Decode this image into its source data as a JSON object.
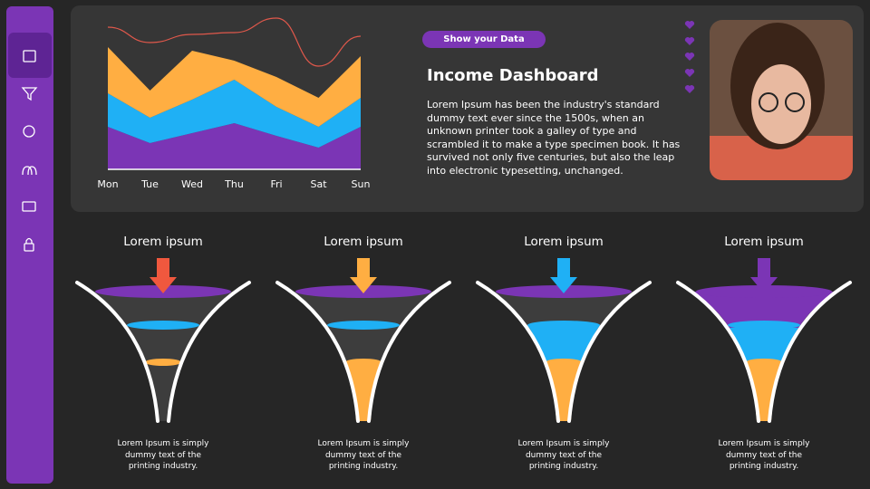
{
  "chart_data": {
    "type": "area",
    "stacked": true,
    "categories": [
      "Mon",
      "Tue",
      "Wed",
      "Thu",
      "Fri",
      "Sat",
      "Sun"
    ],
    "ylim": [
      0,
      170
    ],
    "series": [
      {
        "color": "#7b35b5",
        "values": [
          47,
          29,
          40,
          51,
          37,
          24,
          47
        ]
      },
      {
        "color": "#1fb0f5",
        "values": [
          37,
          28,
          37,
          48,
          32,
          23,
          32
        ]
      },
      {
        "color": "#ffae42",
        "values": [
          51,
          30,
          54,
          21,
          33,
          32,
          46
        ]
      },
      {
        "type": "line",
        "color": "#e0584b",
        "values": [
          157,
          140,
          149,
          151,
          167,
          114,
          147
        ]
      }
    ]
  },
  "header": {
    "button": "Show your Data",
    "title": "Income Dashboard",
    "text": "Lorem Ipsum has been the industry's standard dummy text ever since the 1500s, when an unknown printer took a galley of type and scrambled it to make a type specimen book. It has survived not only five centuries, but also the leap into electronic typesetting, unchanged."
  },
  "funnels": [
    {
      "title": "Lorem ipsum",
      "arrow_color": "#f0583e",
      "text": "Lorem Ipsum is simply dummy text of the printing industry."
    },
    {
      "title": "Lorem ipsum",
      "arrow_color": "#ffae42",
      "text": "Lorem Ipsum is simply dummy text of the printing industry."
    },
    {
      "title": "Lorem ipsum",
      "arrow_color": "#1fb0f5",
      "text": "Lorem Ipsum is simply dummy text of the printing industry."
    },
    {
      "title": "Lorem ipsum",
      "arrow_color": "#7b35b5",
      "text": "Lorem Ipsum is simply dummy text of the printing industry."
    }
  ]
}
